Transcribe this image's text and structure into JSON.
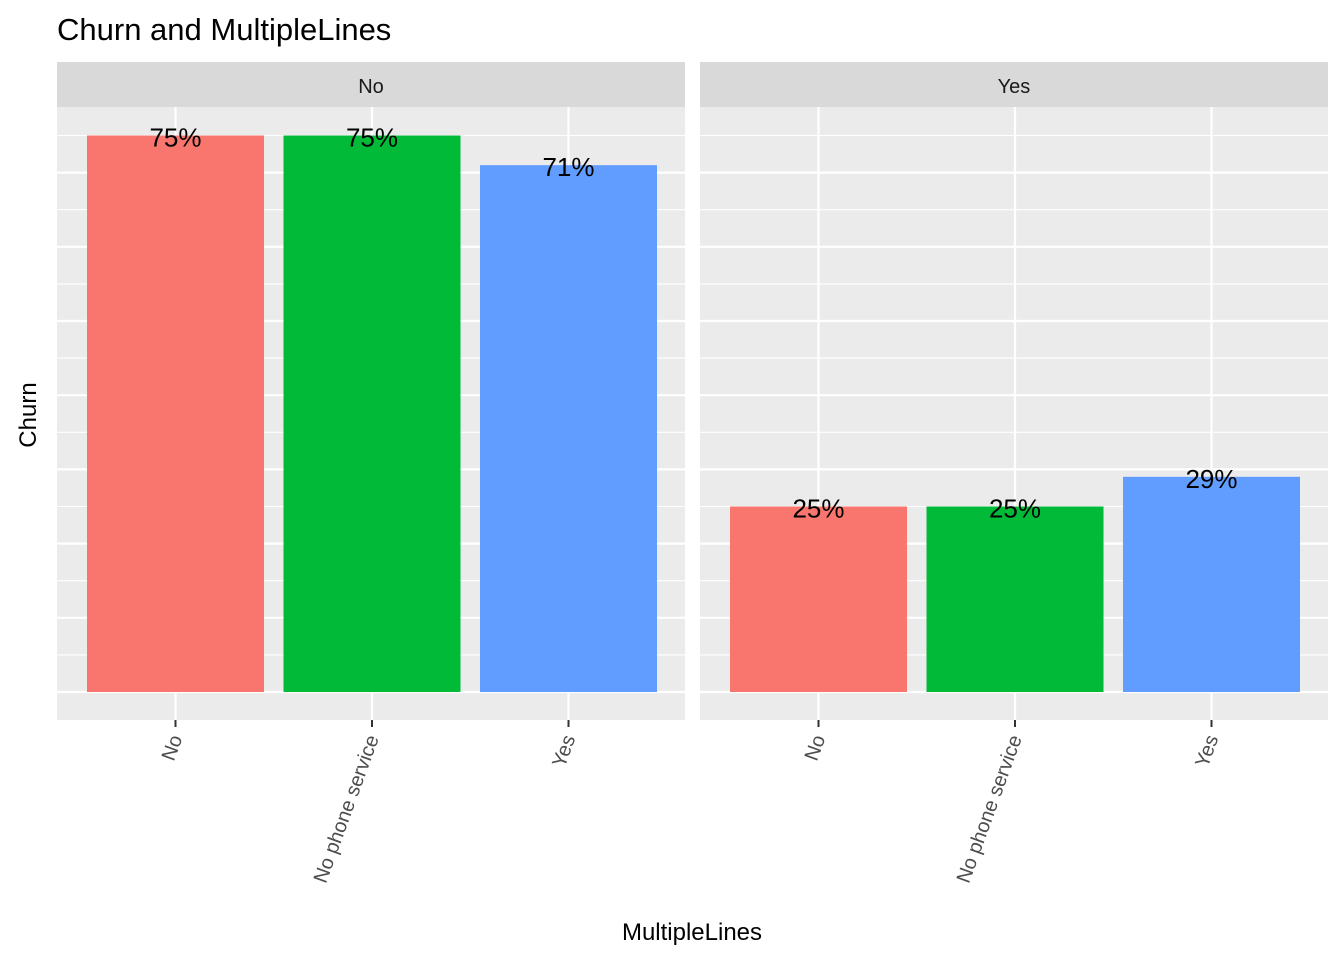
{
  "chart_data": {
    "type": "bar",
    "title": "Churn and MultipleLines",
    "xlabel": "MultipleLines",
    "ylabel": "Churn",
    "ylim": [
      0,
      0.8
    ],
    "grid": true,
    "y_ticks_labeled": false,
    "facets": [
      {
        "label": "No",
        "categories": [
          "No",
          "No phone service",
          "Yes"
        ],
        "values": [
          0.75,
          0.75,
          0.71
        ],
        "value_labels": [
          "75%",
          "75%",
          "71%"
        ]
      },
      {
        "label": "Yes",
        "categories": [
          "No",
          "No phone service",
          "Yes"
        ],
        "values": [
          0.25,
          0.25,
          0.29
        ],
        "value_labels": [
          "25%",
          "25%",
          "29%"
        ]
      }
    ],
    "colors": {
      "No": "#F8766D",
      "No phone service": "#00BA38",
      "Yes": "#619CFF",
      "panel_background": "#EBEBEB",
      "strip_background": "#D9D9D9",
      "gridline": "#FFFFFF",
      "axis_text": "#4D4D4D",
      "label_text": "#000000"
    }
  }
}
